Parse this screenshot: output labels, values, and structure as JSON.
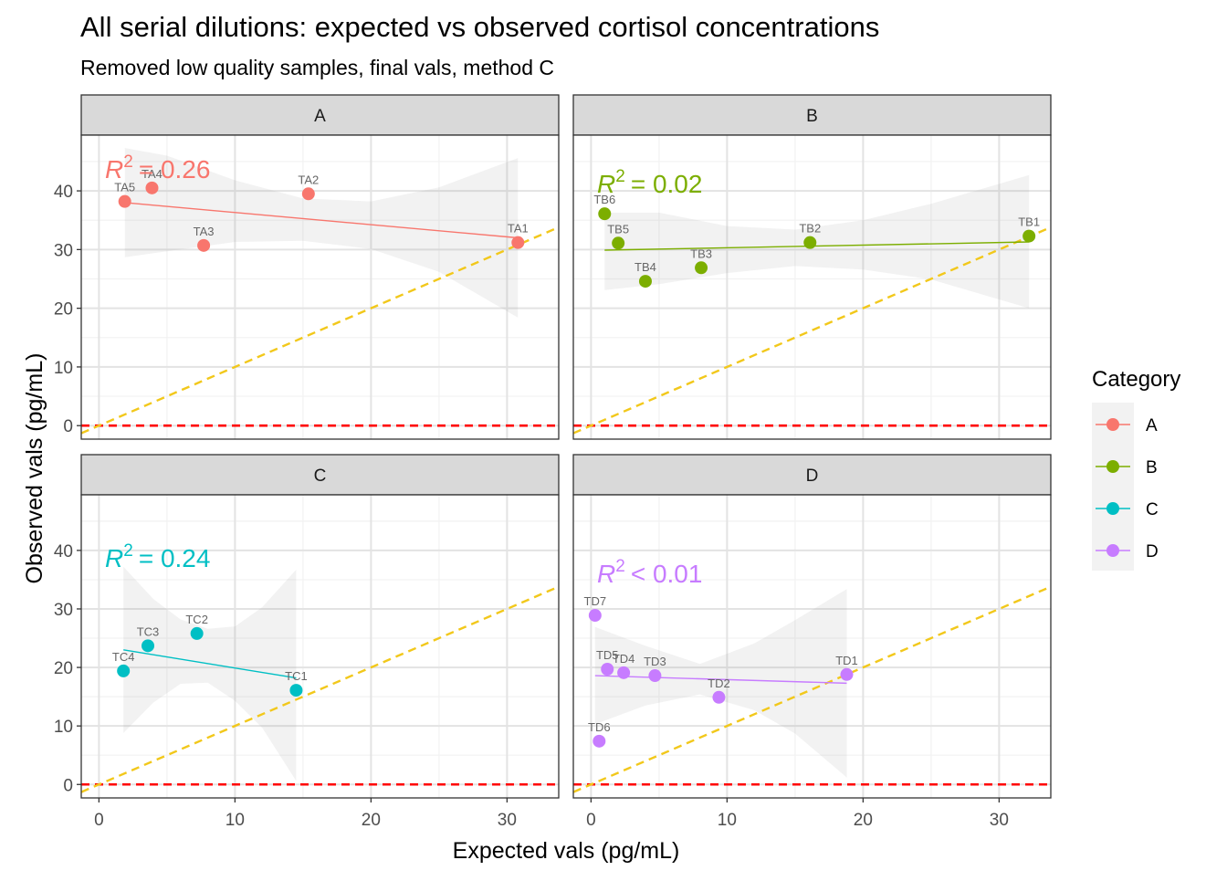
{
  "chart_data": {
    "type": "scatter",
    "title": "All serial dilutions: expected vs observed cortisol concentrations",
    "subtitle": "Removed low quality samples, final vals, method C",
    "xlabel": "Expected vals (pg/mL)",
    "ylabel": "Observed vals (pg/mL)",
    "xlim": [
      -1.3,
      33.8
    ],
    "ylim": [
      -2.3,
      49.5
    ],
    "x_ticks": [
      0,
      10,
      20,
      30
    ],
    "y_ticks": [
      0,
      10,
      20,
      30,
      40
    ],
    "x_tick_labels": [
      "0",
      "10",
      "20",
      "30"
    ],
    "y_tick_labels": [
      "0",
      "10",
      "20",
      "30",
      "40"
    ],
    "grid": true,
    "reference_lines": {
      "zero_line": {
        "y": 0,
        "color": "#ff0000",
        "style": "dashed"
      },
      "identity_line": {
        "slope": 1,
        "intercept": 0,
        "color": "#f2c81b",
        "style": "dashed"
      }
    },
    "legend": {
      "title": "Category",
      "position": "right",
      "entries": [
        {
          "label": "A",
          "color": "#f8766d"
        },
        {
          "label": "B",
          "color": "#7cae00"
        },
        {
          "label": "C",
          "color": "#00bfc4"
        },
        {
          "label": "D",
          "color": "#c77cff"
        }
      ]
    },
    "panels": [
      {
        "strip": "A",
        "color": "#f8766d",
        "r2_value": "= 0.26",
        "points": [
          {
            "label": "TA1",
            "x": 30.8,
            "y": 31.2
          },
          {
            "label": "TA2",
            "x": 15.4,
            "y": 39.5
          },
          {
            "label": "TA3",
            "x": 7.7,
            "y": 30.7
          },
          {
            "label": "TA4",
            "x": 3.9,
            "y": 40.5
          },
          {
            "label": "TA5",
            "x": 1.9,
            "y": 38.2
          }
        ],
        "fit": {
          "x1": 1.9,
          "y1": 38.0,
          "x2": 30.8,
          "y2": 32.0
        },
        "band": {
          "x": [
            1.9,
            5,
            10,
            15,
            20,
            25,
            30.8
          ],
          "lower": [
            28.7,
            29.7,
            31.3,
            31.5,
            30.1,
            26.2,
            18.4
          ],
          "upper": [
            47.3,
            46.0,
            41.8,
            38.7,
            38.2,
            40.6,
            45.6
          ]
        }
      },
      {
        "strip": "B",
        "color": "#7cae00",
        "r2_value": "= 0.02",
        "points": [
          {
            "label": "TB1",
            "x": 32.2,
            "y": 32.3
          },
          {
            "label": "TB2",
            "x": 16.1,
            "y": 31.2
          },
          {
            "label": "TB3",
            "x": 8.1,
            "y": 26.9
          },
          {
            "label": "TB4",
            "x": 4.0,
            "y": 24.6
          },
          {
            "label": "TB5",
            "x": 2.0,
            "y": 31.1
          },
          {
            "label": "TB6",
            "x": 1.0,
            "y": 36.1
          }
        ],
        "fit": {
          "x1": 1.0,
          "y1": 29.9,
          "x2": 32.2,
          "y2": 31.3
        },
        "band": {
          "x": [
            1.0,
            5,
            10,
            15,
            20,
            25,
            32.2
          ],
          "lower": [
            23.1,
            24.1,
            26.0,
            27.2,
            26.6,
            24.9,
            20.0
          ],
          "upper": [
            36.3,
            36.3,
            34.0,
            33.4,
            35.0,
            37.8,
            42.7
          ]
        }
      },
      {
        "strip": "C",
        "color": "#00bfc4",
        "r2_value": "= 0.24",
        "points": [
          {
            "label": "TC1",
            "x": 14.5,
            "y": 16.1
          },
          {
            "label": "TC2",
            "x": 7.2,
            "y": 25.8
          },
          {
            "label": "TC3",
            "x": 3.6,
            "y": 23.7
          },
          {
            "label": "TC4",
            "x": 1.8,
            "y": 19.4
          }
        ],
        "fit": {
          "x1": 1.8,
          "y1": 23.0,
          "x2": 14.5,
          "y2": 18.2
        },
        "band": {
          "x": [
            1.8,
            4,
            6,
            8,
            10,
            12,
            14.5
          ],
          "lower": [
            8.8,
            14.0,
            17.2,
            17.4,
            14.3,
            9.7,
            0.6
          ],
          "upper": [
            37.2,
            31.7,
            28.2,
            26.6,
            27.0,
            30.3,
            36.7
          ]
        }
      },
      {
        "strip": "D",
        "color": "#c77cff",
        "r2_value": "< 0.01",
        "points": [
          {
            "label": "TD1",
            "x": 18.8,
            "y": 18.8
          },
          {
            "label": "TD2",
            "x": 9.4,
            "y": 14.9
          },
          {
            "label": "TD3",
            "x": 4.7,
            "y": 18.6
          },
          {
            "label": "TD4",
            "x": 2.4,
            "y": 19.1
          },
          {
            "label": "TD5",
            "x": 1.2,
            "y": 19.7
          },
          {
            "label": "TD6",
            "x": 0.6,
            "y": 7.4
          },
          {
            "label": "TD7",
            "x": 0.3,
            "y": 28.9
          }
        ],
        "fit": {
          "x1": 0.3,
          "y1": 18.6,
          "x2": 18.8,
          "y2": 17.3
        },
        "band": {
          "x": [
            0.3,
            4,
            8,
            12,
            15,
            18.8
          ],
          "lower": [
            10.3,
            13.5,
            15.4,
            12.7,
            8.7,
            1.2
          ],
          "upper": [
            26.9,
            23.7,
            20.6,
            24.1,
            28.1,
            33.4
          ]
        }
      }
    ]
  }
}
